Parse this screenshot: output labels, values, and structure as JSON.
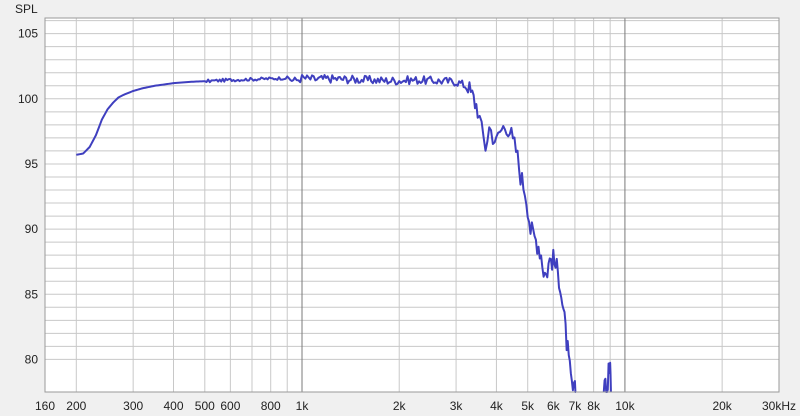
{
  "chart_data": {
    "type": "line",
    "title": "",
    "xlabel": "",
    "ylabel": "SPL",
    "xscale": "log",
    "xlim": [
      160,
      30000
    ],
    "ylim": [
      77.5,
      106.2
    ],
    "grid": true,
    "legend": "none",
    "colors": {
      "line": "#3f3fbf",
      "plot_bg": "#ffffff",
      "page_bg": "#f0f0f0",
      "grid_minor": "#c8c8c8",
      "grid_major": "#7a7a7a"
    },
    "y_ticks": [
      {
        "value": 80,
        "label": "80"
      },
      {
        "value": 85,
        "label": "85"
      },
      {
        "value": 90,
        "label": "90"
      },
      {
        "value": 95,
        "label": "95"
      },
      {
        "value": 100,
        "label": "100"
      },
      {
        "value": 105,
        "label": "105"
      }
    ],
    "x_ticks": [
      {
        "value": 160,
        "label": "160"
      },
      {
        "value": 200,
        "label": "200"
      },
      {
        "value": 300,
        "label": "300"
      },
      {
        "value": 400,
        "label": "400"
      },
      {
        "value": 500,
        "label": "500"
      },
      {
        "value": 600,
        "label": "600"
      },
      {
        "value": 800,
        "label": "800"
      },
      {
        "value": 1000,
        "label": "1k"
      },
      {
        "value": 2000,
        "label": "2k"
      },
      {
        "value": 3000,
        "label": "3k"
      },
      {
        "value": 4000,
        "label": "4k"
      },
      {
        "value": 5000,
        "label": "5k"
      },
      {
        "value": 6000,
        "label": "6k"
      },
      {
        "value": 7000,
        "label": "7k"
      },
      {
        "value": 8000,
        "label": "8k"
      },
      {
        "value": 10000,
        "label": "10k"
      },
      {
        "value": 20000,
        "label": "20k"
      },
      {
        "value": 30000,
        "label": "30kHz"
      }
    ],
    "x_major_grid": [
      1000,
      10000
    ],
    "x_minor_grid": [
      200,
      300,
      400,
      500,
      600,
      700,
      800,
      900,
      2000,
      3000,
      4000,
      5000,
      6000,
      7000,
      8000,
      9000,
      20000
    ],
    "y_grid": [
      80,
      81,
      82,
      83,
      84,
      85,
      86,
      87,
      88,
      89,
      90,
      91,
      92,
      93,
      94,
      95,
      96,
      97,
      98,
      99,
      100,
      101,
      102,
      103,
      104,
      105,
      106
    ],
    "series": [
      {
        "values_x": [
          200,
          210,
          220,
          230,
          240,
          250,
          260,
          270,
          280,
          300,
          320,
          350,
          400,
          450,
          500,
          550,
          600,
          700,
          800,
          900,
          950,
          1000,
          1100,
          1200,
          1400,
          1600,
          1800,
          2000,
          2200,
          2500,
          2800,
          3000,
          3100,
          3200,
          3300,
          3400,
          3500,
          3600,
          3700,
          3800,
          3900,
          4000,
          4100,
          4200,
          4300,
          4400,
          4500,
          4600,
          4700,
          4800,
          4900,
          5000,
          5100,
          5200,
          5300,
          5400,
          5500,
          5600,
          5700,
          5800,
          5900,
          6000,
          6100,
          6200,
          6300,
          6400,
          6500,
          6600,
          6700,
          6800,
          6900,
          7000,
          7050
        ],
        "values_y": [
          95.7,
          95.8,
          96.3,
          97.2,
          98.4,
          99.2,
          99.7,
          100.1,
          100.3,
          100.6,
          100.8,
          101.0,
          101.2,
          101.3,
          101.35,
          101.4,
          101.45,
          101.5,
          101.55,
          101.6,
          101.4,
          101.6,
          101.5,
          101.55,
          101.5,
          101.45,
          101.4,
          101.4,
          101.45,
          101.4,
          101.35,
          101.3,
          101.2,
          101.0,
          100.6,
          100.0,
          99.3,
          97.5,
          96.4,
          97.8,
          97.3,
          96.6,
          97.5,
          97.8,
          98.1,
          97.6,
          96.6,
          96.1,
          94.8,
          93.7,
          93.1,
          91.8,
          90.0,
          89.5,
          89.2,
          88.8,
          88.1,
          86.9,
          86.5,
          87.3,
          87.8,
          87.6,
          87.2,
          86.6,
          86.0,
          84.4,
          82.9,
          81.4,
          79.8,
          78.4,
          77.6,
          77.5,
          77.3
        ]
      },
      {
        "values_x": [
          8600,
          8700,
          8800,
          8900,
          9000,
          9050
        ],
        "values_y": [
          77.5,
          78.1,
          77.6,
          79.2,
          79.7,
          77.4
        ]
      }
    ]
  }
}
